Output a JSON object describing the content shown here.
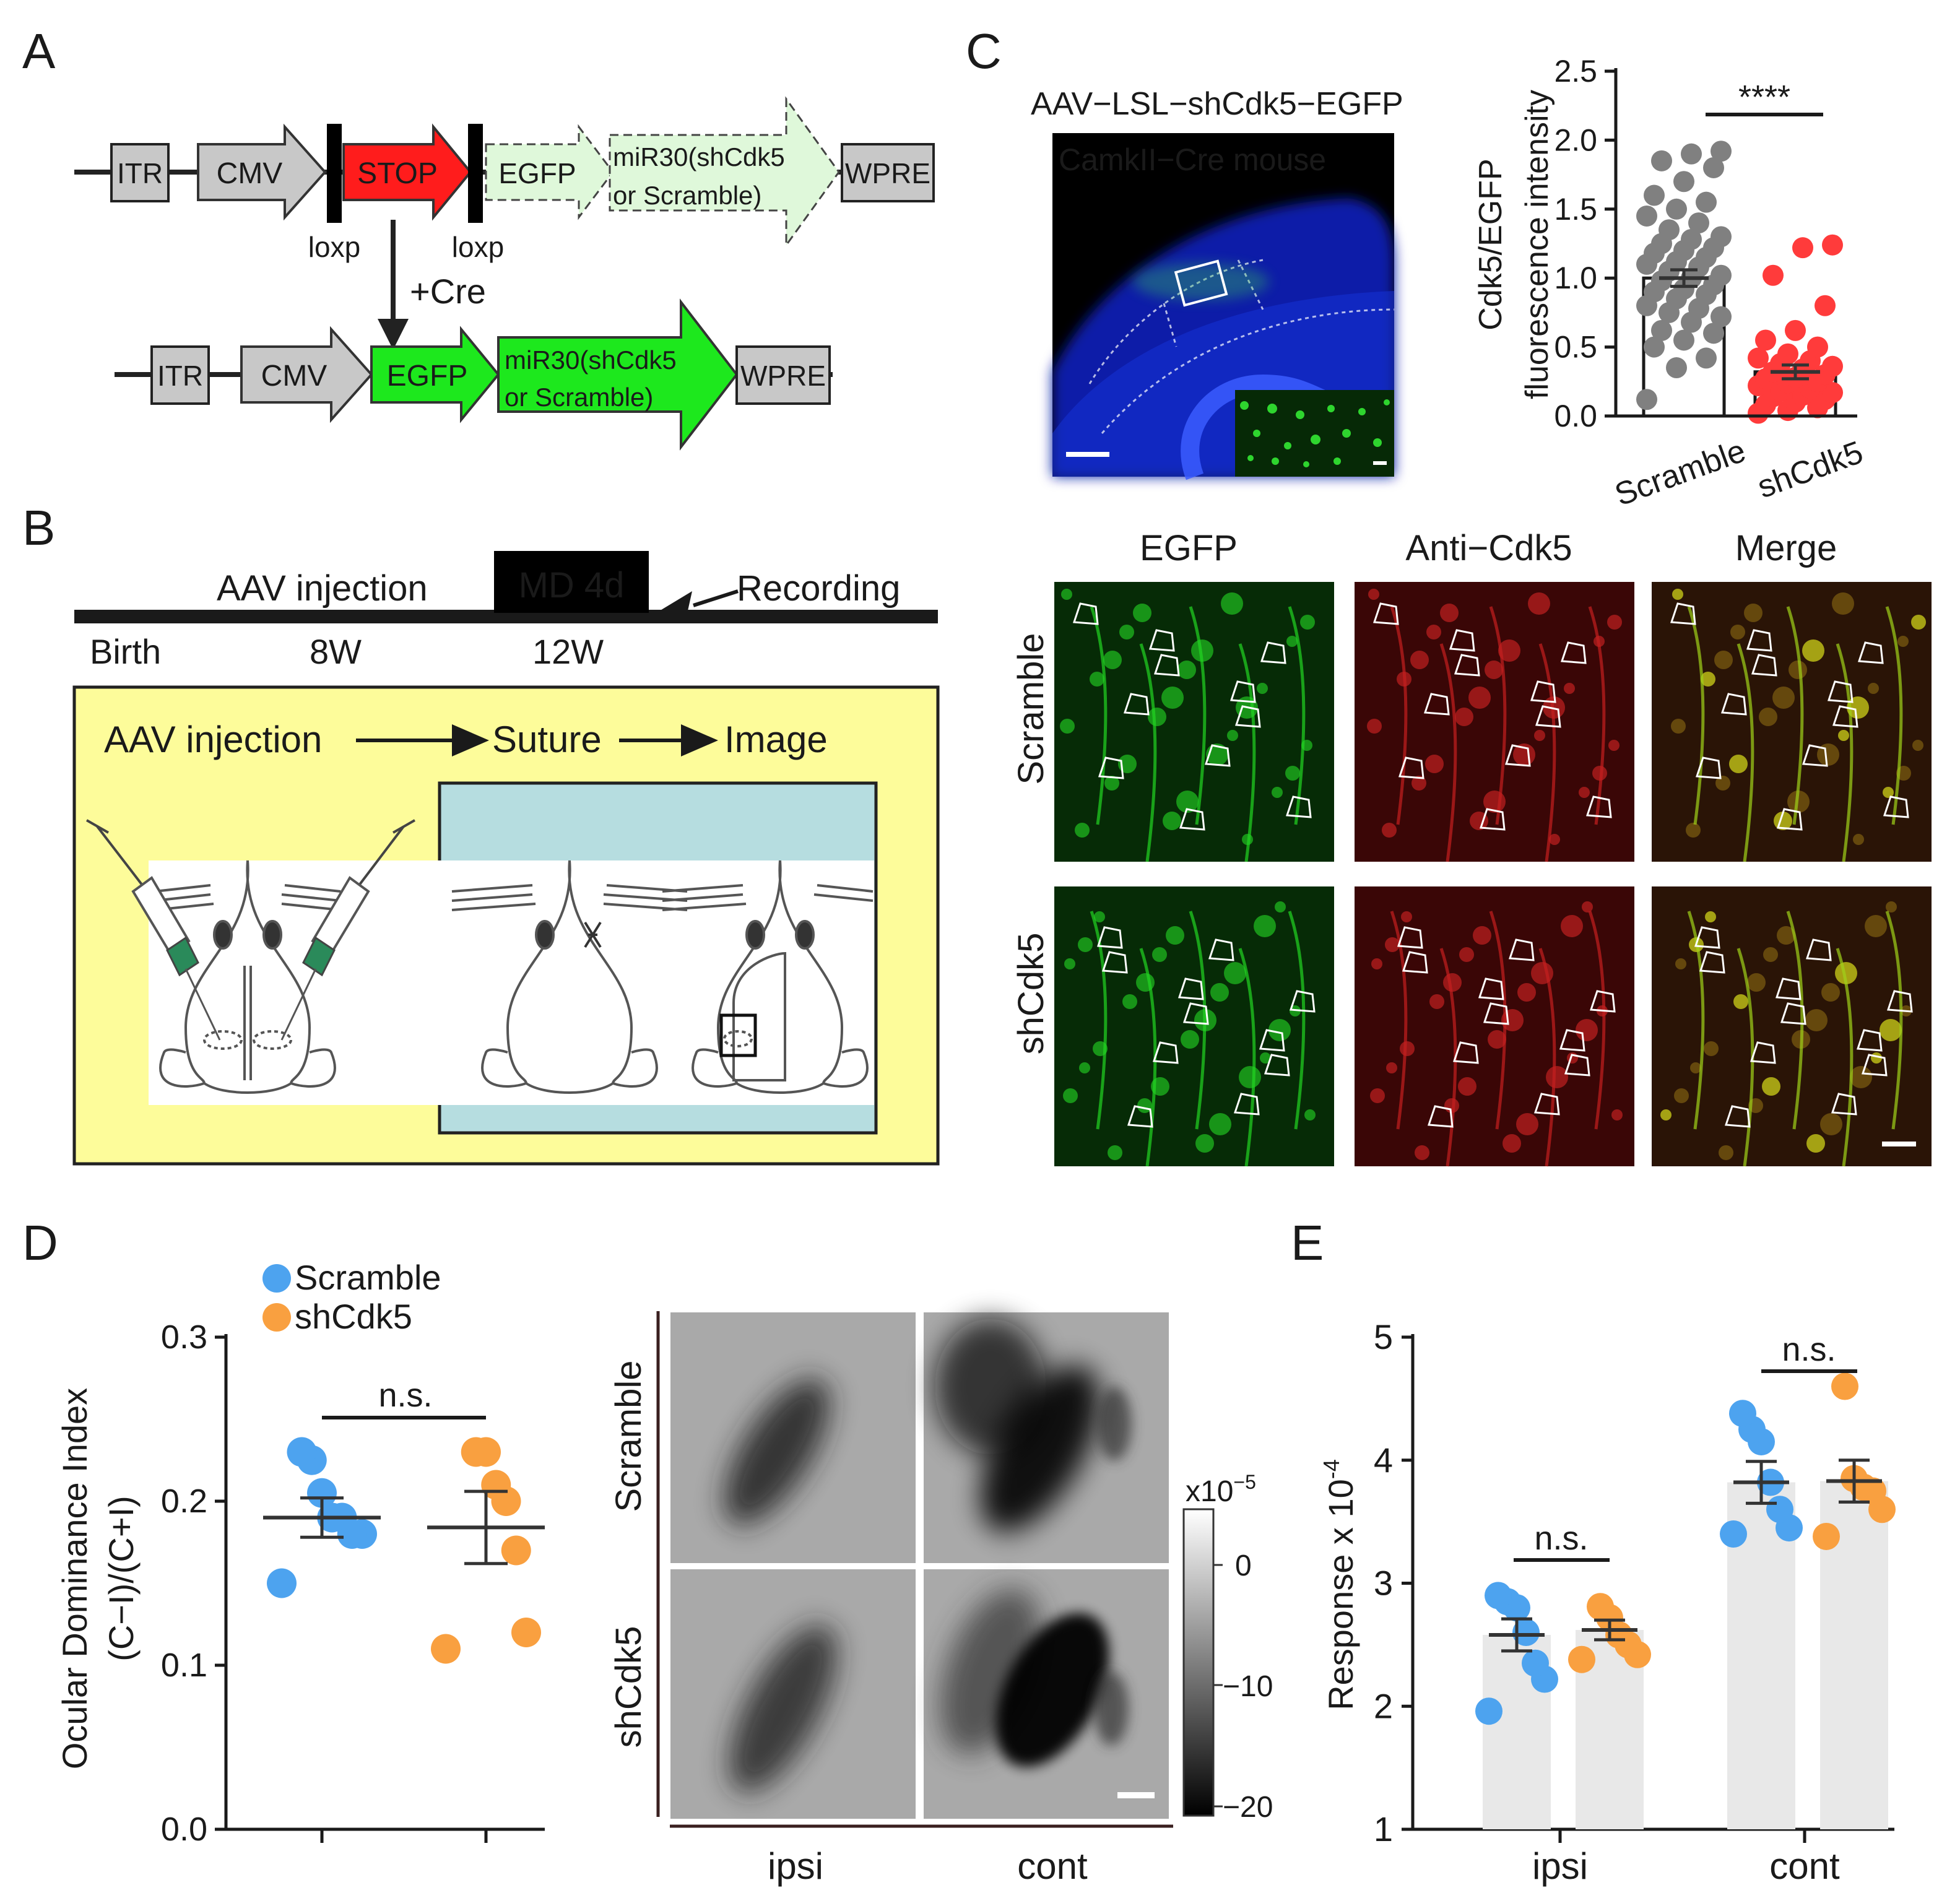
{
  "panels": {
    "A": {
      "letter": "A",
      "top": {
        "itr": "ITR",
        "cmv": "CMV",
        "stop": "STOP",
        "egfp": "EGFP",
        "mir_line1": "miR30(shCdk5",
        "mir_line2": "or Scramble)",
        "wpre": "WPRE",
        "loxp_left": "loxp",
        "loxp_right": "loxp"
      },
      "cre_label": "+Cre",
      "bottom": {
        "itr": "ITR",
        "cmv": "CMV",
        "egfp": "EGFP",
        "mir_line1": "miR30(shCdk5",
        "mir_line2": "or Scramble)",
        "wpre": "WPRE"
      }
    },
    "B": {
      "letter": "B",
      "timeline": {
        "aav": "AAV injection",
        "md": "MD 4d",
        "recording": "Recording",
        "birth": "Birth",
        "w8": "8W",
        "w12": "12W"
      },
      "steps": {
        "s1": "AAV injection",
        "s2": "Suture",
        "s3": "Image"
      }
    },
    "C": {
      "letter": "C",
      "micrograph_title": "AAV−LSL−shCdk5−EGFP",
      "micrograph_label": "CamkII−Cre mouse",
      "columns": [
        "EGFP",
        "Anti−Cdk5",
        "Merge"
      ],
      "rows": [
        "Scramble",
        "shCdk5"
      ]
    },
    "D": {
      "letter": "D",
      "map_rows": [
        "Scramble",
        "shCdk5"
      ],
      "map_cols": [
        "ipsi",
        "cont"
      ],
      "colorbar": {
        "unit_base": "x10",
        "unit_exp": "−5",
        "ticks": [
          "0",
          "−10",
          "−20"
        ]
      }
    },
    "E": {
      "letter": "E"
    }
  },
  "chart_data": [
    {
      "id": "C-bar",
      "type": "bar",
      "ylabel_line1": "Cdk5/EGFP",
      "ylabel_line2": "fluorescence intensity",
      "categories": [
        "Scramble",
        "shCdk5"
      ],
      "ylim": [
        0,
        2.5
      ],
      "yticks": [
        "0.0",
        "0.5",
        "1.0",
        "1.5",
        "2.0",
        "2.5"
      ],
      "significance": "****",
      "colors": {
        "Scramble": "#808080",
        "shCdk5": "#ff3b3b"
      },
      "series": [
        {
          "name": "Scramble",
          "mean": 1.0,
          "sem": 0.06,
          "points": [
            0.12,
            0.35,
            0.42,
            0.5,
            0.55,
            0.6,
            0.62,
            0.68,
            0.72,
            0.75,
            0.78,
            0.8,
            0.85,
            0.88,
            0.9,
            0.92,
            0.95,
            0.98,
            1.0,
            1.02,
            1.05,
            1.08,
            1.1,
            1.12,
            1.15,
            1.18,
            1.2,
            1.22,
            1.25,
            1.28,
            1.3,
            1.35,
            1.4,
            1.45,
            1.5,
            1.55,
            1.6,
            1.7,
            1.8,
            1.85,
            1.9,
            1.92
          ]
        },
        {
          "name": "shCdk5",
          "mean": 0.32,
          "sem": 0.05,
          "points": [
            0.02,
            0.04,
            0.06,
            0.08,
            0.1,
            0.12,
            0.14,
            0.15,
            0.17,
            0.18,
            0.2,
            0.22,
            0.24,
            0.25,
            0.27,
            0.28,
            0.3,
            0.32,
            0.34,
            0.36,
            0.38,
            0.4,
            0.42,
            0.45,
            0.5,
            0.55,
            0.62,
            0.8,
            1.02,
            1.22,
            1.24
          ]
        }
      ]
    },
    {
      "id": "D-scatter",
      "type": "scatter",
      "ylabel_line1": "Ocular Dominance Index",
      "ylabel_line2": "(C−I)/(C+I)",
      "ylim": [
        0,
        0.3
      ],
      "yticks": [
        "0.0",
        "0.1",
        "0.2",
        "0.3"
      ],
      "legend": [
        "Scramble",
        "shCdk5"
      ],
      "significance": "n.s.",
      "colors": {
        "Scramble": "#4da3ef",
        "shCdk5": "#f9a040"
      },
      "series": [
        {
          "name": "Scramble",
          "mean": 0.19,
          "sem": 0.012,
          "points": [
            0.15,
            0.18,
            0.18,
            0.19,
            0.19,
            0.205,
            0.225,
            0.23
          ]
        },
        {
          "name": "shCdk5",
          "mean": 0.184,
          "sem": 0.022,
          "points": [
            0.11,
            0.12,
            0.17,
            0.2,
            0.21,
            0.23,
            0.23
          ]
        }
      ]
    },
    {
      "id": "E-bar",
      "type": "bar",
      "ylabel": "Response x 10",
      "ylabel_exp": "-4",
      "ylim": [
        1,
        5
      ],
      "yticks": [
        "1",
        "2",
        "3",
        "4",
        "5"
      ],
      "categories": [
        "ipsi",
        "cont"
      ],
      "significance": [
        "n.s.",
        "n.s."
      ],
      "colors": {
        "Scramble": "#4da3ef",
        "shCdk5": "#f9a040"
      },
      "series": [
        {
          "name": "Scramble",
          "mean": [
            2.58,
            3.82
          ],
          "sem": [
            0.13,
            0.17
          ],
          "points": [
            [
              1.96,
              2.22,
              2.35,
              2.6,
              2.8,
              2.85,
              2.9
            ],
            [
              3.4,
              3.45,
              3.6,
              3.82,
              4.15,
              4.25,
              4.38
            ]
          ]
        },
        {
          "name": "shCdk5",
          "mean": [
            2.62,
            3.83
          ],
          "sem": [
            0.08,
            0.17
          ],
          "points": [
            [
              2.38,
              2.42,
              2.5,
              2.58,
              2.72,
              2.81
            ],
            [
              3.38,
              3.6,
              3.75,
              3.78,
              3.85,
              4.6
            ]
          ]
        }
      ]
    }
  ]
}
